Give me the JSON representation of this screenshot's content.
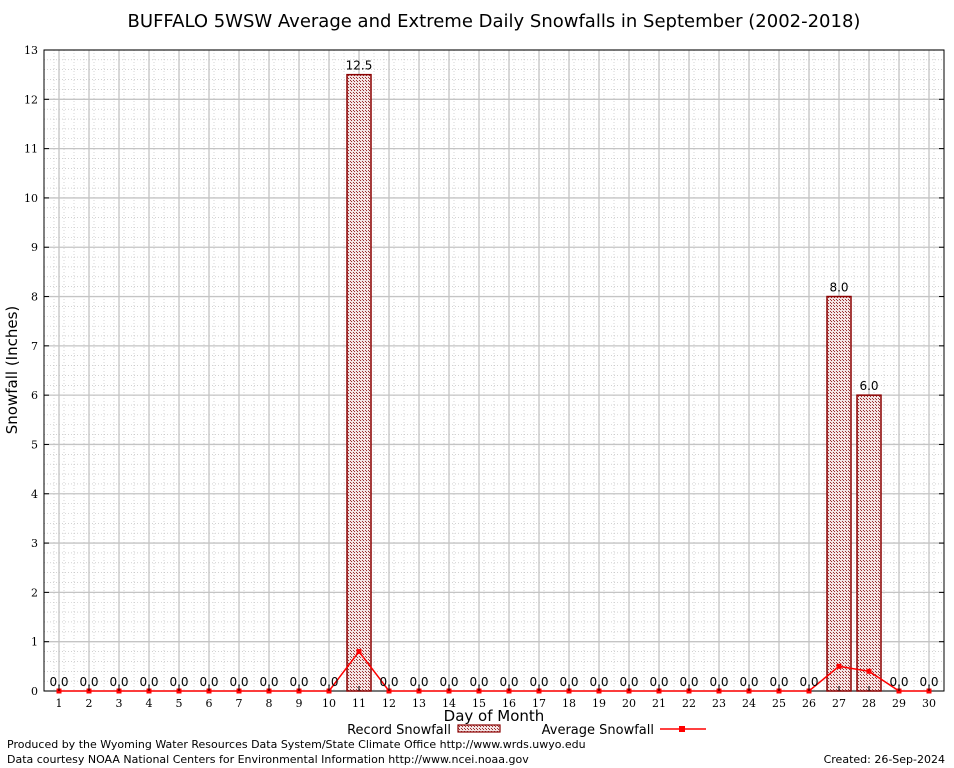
{
  "chart_data": {
    "type": "bar",
    "title": "BUFFALO 5WSW Average and Extreme Daily Snowfalls in September (2002-2018)",
    "xlabel": "Day of Month",
    "ylabel": "Snowfall (Inches)",
    "ylim": [
      0,
      13
    ],
    "yticks": [
      "0",
      "1",
      "2",
      "3",
      "4",
      "5",
      "6",
      "7",
      "8",
      "9",
      "10",
      "11",
      "12",
      "13"
    ],
    "categories": [
      "1",
      "2",
      "3",
      "4",
      "5",
      "6",
      "7",
      "8",
      "9",
      "10",
      "11",
      "12",
      "13",
      "14",
      "15",
      "16",
      "17",
      "18",
      "19",
      "20",
      "21",
      "22",
      "23",
      "24",
      "25",
      "26",
      "27",
      "28",
      "29",
      "30"
    ],
    "grid": true,
    "legend_position": "bottom",
    "series": [
      {
        "name": "Record Snowfall",
        "kind": "bar",
        "color": "#8b0000",
        "values": [
          0,
          0,
          0,
          0,
          0,
          0,
          0,
          0,
          0,
          0,
          12.5,
          0,
          0,
          0,
          0,
          0,
          0,
          0,
          0,
          0,
          0,
          0,
          0,
          0,
          0,
          0,
          8.0,
          6.0,
          0,
          0
        ],
        "labels": [
          "0.0",
          "0.0",
          "0.0",
          "0.0",
          "0.0",
          "0.0",
          "0.0",
          "0.0",
          "0.0",
          "0.0",
          "12.5",
          "0.0",
          "0.0",
          "0.0",
          "0.0",
          "0.0",
          "0.0",
          "0.0",
          "0.0",
          "0.0",
          "0.0",
          "0.0",
          "0.0",
          "0.0",
          "0.0",
          "0.0",
          "8.0",
          "6.0",
          "0.0",
          "0.0"
        ]
      },
      {
        "name": "Average Snowfall",
        "kind": "line",
        "color": "#ff0000",
        "values": [
          0,
          0,
          0,
          0,
          0,
          0,
          0,
          0,
          0,
          0,
          0.8,
          0,
          0,
          0,
          0,
          0,
          0,
          0,
          0,
          0,
          0,
          0,
          0,
          0,
          0,
          0,
          0.5,
          0.4,
          0,
          0
        ]
      }
    ]
  },
  "footer": {
    "produced_by": "Produced by the Wyoming Water Resources Data System/State Climate Office http://www.wrds.uwyo.edu",
    "data_courtesy": "Data courtesy NOAA National Centers for Environmental Information http://www.ncei.noaa.gov",
    "created": "Created:  26-Sep-2024"
  }
}
